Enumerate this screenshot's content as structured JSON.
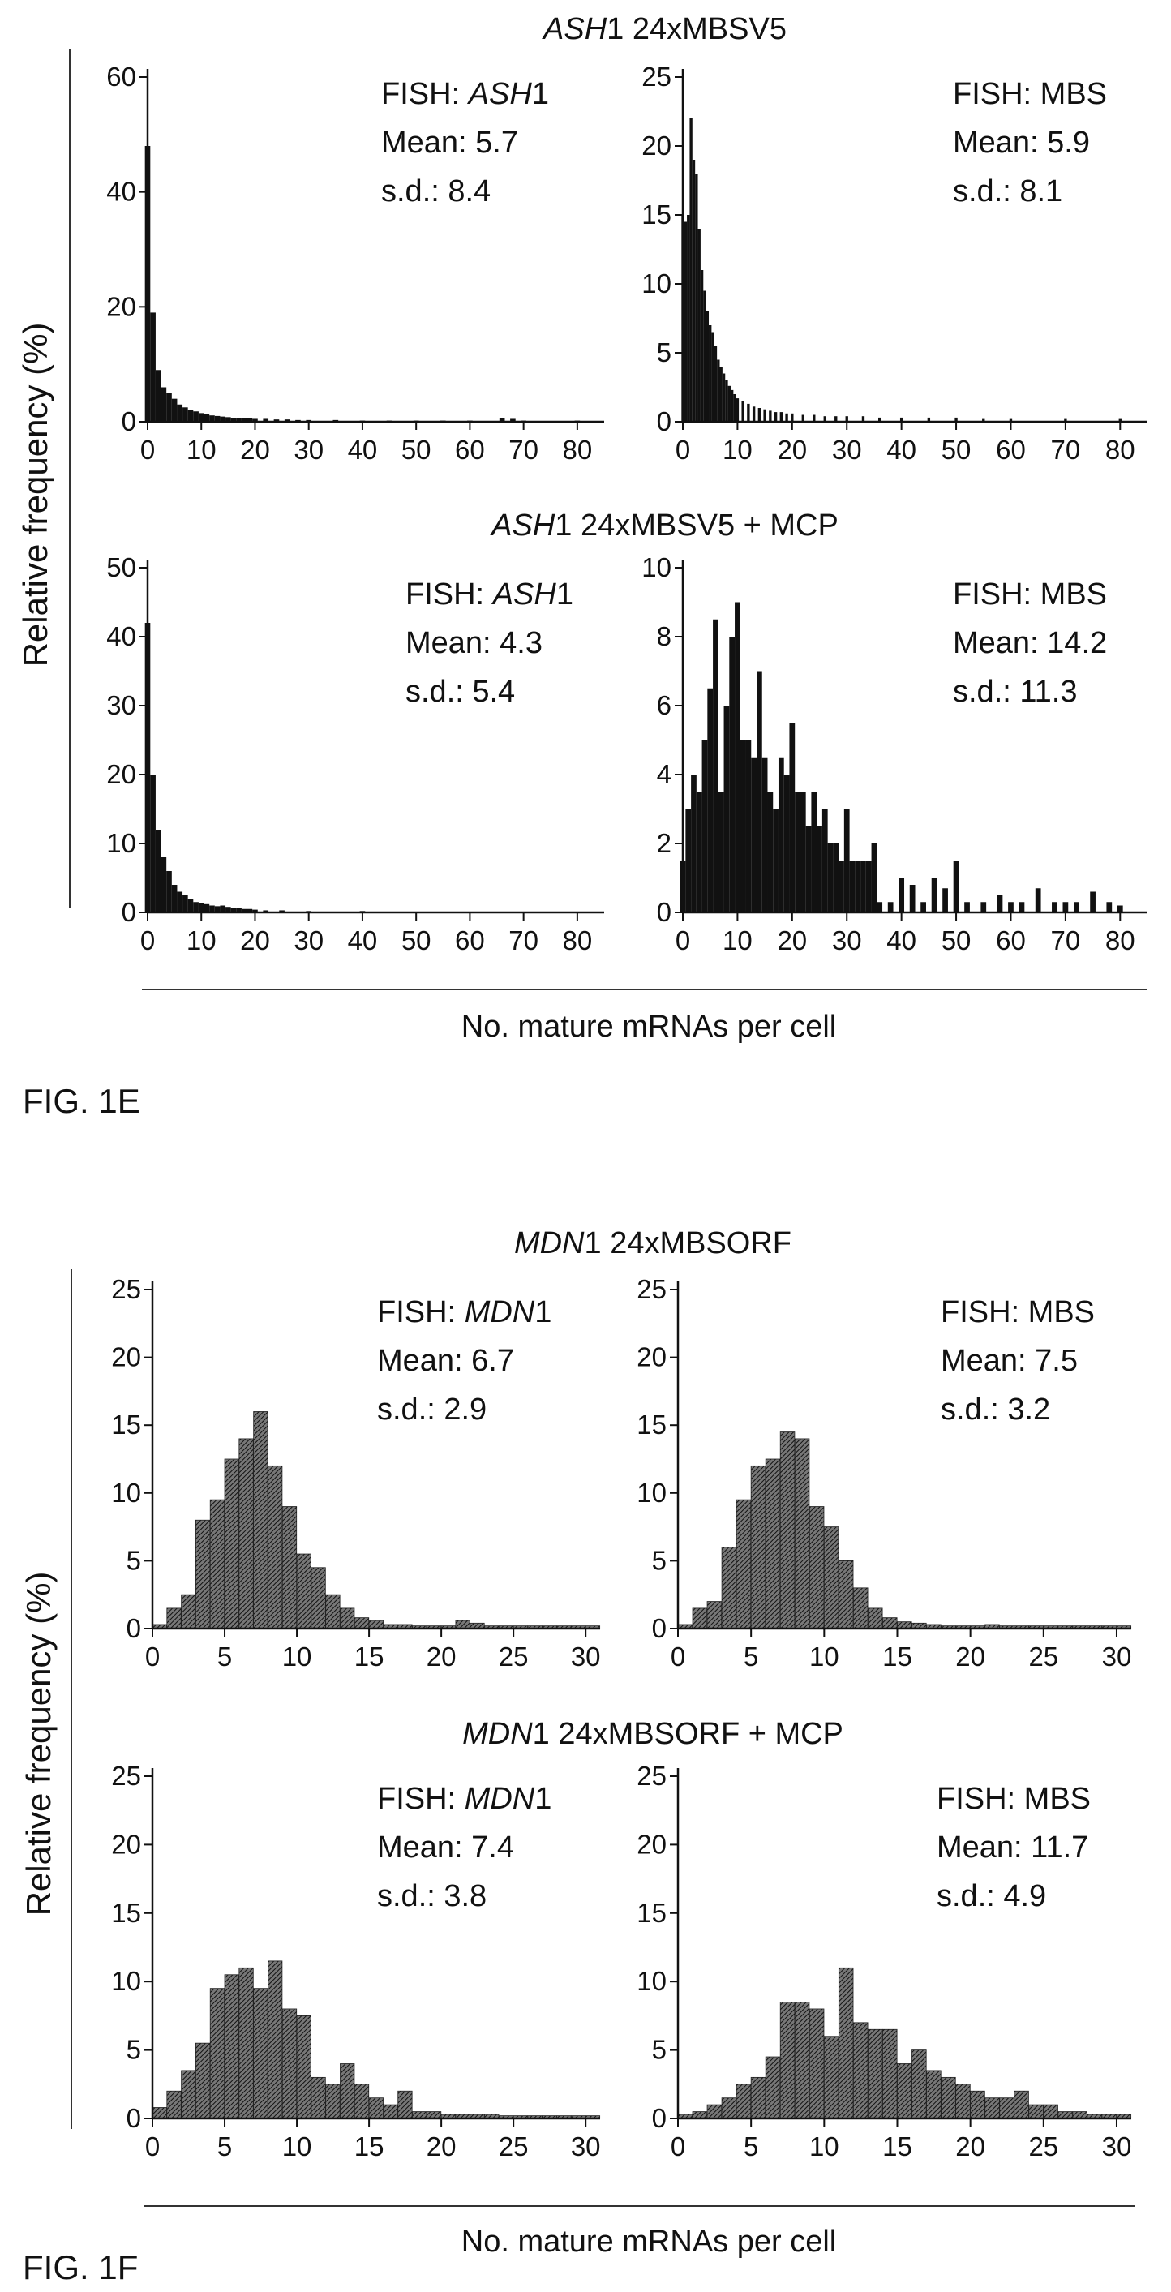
{
  "figures": [
    {
      "label": "FIG. 1E",
      "ylabel": "Relative frequency (%)",
      "xlabel": "No. mature mRNAs per cell",
      "group_titles": [
        {
          "gene": "ASH",
          "rest": "1 24xMBSV5"
        },
        {
          "gene": "ASH",
          "rest": "1 24xMBSV5 + MCP"
        }
      ]
    },
    {
      "label": "FIG. 1F",
      "ylabel": "Relative frequency (%)",
      "xlabel": "No. mature mRNAs per cell",
      "group_titles": [
        {
          "gene": "MDN",
          "rest": "1 24xMBSORF"
        },
        {
          "gene": "MDN",
          "rest": "1 24xMBSORF + MCP"
        }
      ]
    }
  ],
  "chart_data": [
    {
      "type": "bar",
      "figure": "FIG. 1E",
      "group": "ASH1 24xMBSV5",
      "fish": {
        "prefix": "FISH: ",
        "italic": "ASH",
        "suffix": "1"
      },
      "mean": "Mean: 5.7",
      "sd": "s.d.: 8.4",
      "xlim": [
        0,
        85
      ],
      "ylim": [
        0,
        60
      ],
      "xticks": [
        0,
        10,
        20,
        30,
        40,
        50,
        60,
        70,
        80
      ],
      "yticks": [
        0,
        20,
        40,
        60
      ],
      "x": [
        0,
        1,
        2,
        3,
        4,
        5,
        6,
        7,
        8,
        9,
        10,
        11,
        12,
        13,
        14,
        15,
        16,
        17,
        18,
        19,
        20,
        22,
        24,
        26,
        28,
        30,
        35,
        40,
        45,
        50,
        55,
        60,
        66,
        68,
        70,
        80
      ],
      "values": [
        48,
        19,
        9,
        6,
        5,
        4,
        3,
        2.5,
        2,
        1.8,
        1.5,
        1.3,
        1.1,
        1,
        0.9,
        0.8,
        0.7,
        0.7,
        0.6,
        0.6,
        0.5,
        0.5,
        0.4,
        0.4,
        0.3,
        0.3,
        0.3,
        0.2,
        0.2,
        0.2,
        0.2,
        0.2,
        0.6,
        0.5,
        0.2,
        0.2
      ]
    },
    {
      "type": "bar",
      "figure": "FIG. 1E",
      "group": "ASH1 24xMBSV5",
      "fish": {
        "prefix": "FISH: MBS",
        "italic": "",
        "suffix": ""
      },
      "mean": "Mean: 5.9",
      "sd": "s.d.: 8.1",
      "xlim": [
        0,
        85
      ],
      "ylim": [
        0,
        25
      ],
      "xticks": [
        0,
        10,
        20,
        30,
        40,
        50,
        60,
        70,
        80
      ],
      "yticks": [
        0,
        5,
        10,
        15,
        20,
        25
      ],
      "x": [
        0,
        0.5,
        1,
        1.5,
        2,
        2.5,
        3,
        3.5,
        4,
        4.5,
        5,
        5.5,
        6,
        6.5,
        7,
        7.5,
        8,
        8.5,
        9,
        9.5,
        10,
        11,
        12,
        13,
        14,
        15,
        16,
        17,
        18,
        19,
        20,
        22,
        24,
        26,
        28,
        30,
        33,
        36,
        40,
        45,
        50,
        55,
        60,
        70,
        80
      ],
      "values": [
        15,
        14.5,
        15,
        22,
        19,
        18,
        14,
        11,
        9.5,
        8,
        7,
        6.5,
        5.5,
        4.5,
        4,
        3.5,
        3,
        2.6,
        2.3,
        2,
        1.7,
        1.5,
        1.3,
        1.1,
        1,
        0.9,
        0.8,
        0.7,
        0.7,
        0.6,
        0.6,
        0.5,
        0.5,
        0.4,
        0.4,
        0.4,
        0.4,
        0.3,
        0.3,
        0.3,
        0.3,
        0.2,
        0.2,
        0.2,
        0.2
      ]
    },
    {
      "type": "bar",
      "figure": "FIG. 1E",
      "group": "ASH1 24xMBSV5 + MCP",
      "fish": {
        "prefix": "FISH: ",
        "italic": "ASH",
        "suffix": "1"
      },
      "mean": "Mean: 4.3",
      "sd": "s.d.: 5.4",
      "xlim": [
        0,
        85
      ],
      "ylim": [
        0,
        50
      ],
      "xticks": [
        0,
        10,
        20,
        30,
        40,
        50,
        60,
        70,
        80
      ],
      "yticks": [
        0,
        10,
        20,
        30,
        40,
        50
      ],
      "x": [
        0,
        1,
        2,
        3,
        4,
        5,
        6,
        7,
        8,
        9,
        10,
        11,
        12,
        13,
        14,
        15,
        16,
        17,
        18,
        19,
        20,
        22,
        25,
        30,
        40
      ],
      "values": [
        42,
        20,
        12,
        8,
        6,
        4,
        3,
        2.5,
        2,
        1.5,
        1.3,
        1.2,
        1,
        0.9,
        1,
        0.8,
        0.7,
        0.6,
        0.5,
        0.5,
        0.4,
        0.3,
        0.3,
        0.2,
        0.2
      ]
    },
    {
      "type": "bar",
      "figure": "FIG. 1E",
      "group": "ASH1 24xMBSV5 + MCP",
      "fish": {
        "prefix": "FISH: MBS",
        "italic": "",
        "suffix": ""
      },
      "mean": "Mean: 14.2",
      "sd": "s.d.: 11.3",
      "xlim": [
        0,
        85
      ],
      "ylim": [
        0,
        10
      ],
      "xticks": [
        0,
        10,
        20,
        30,
        40,
        50,
        60,
        70,
        80
      ],
      "yticks": [
        0,
        2,
        4,
        6,
        8,
        10
      ],
      "x": [
        0,
        1,
        2,
        3,
        4,
        5,
        6,
        7,
        8,
        9,
        10,
        11,
        12,
        13,
        14,
        15,
        16,
        17,
        18,
        19,
        20,
        21,
        22,
        23,
        24,
        25,
        26,
        27,
        28,
        29,
        30,
        31,
        32,
        33,
        34,
        35,
        36,
        38,
        40,
        42,
        44,
        46,
        48,
        50,
        52,
        55,
        58,
        60,
        62,
        65,
        68,
        70,
        72,
        75,
        78,
        80
      ],
      "values": [
        1.5,
        3,
        4,
        3.5,
        5,
        6.5,
        8.5,
        3.5,
        6,
        8,
        9,
        5,
        5,
        4.5,
        7,
        4.5,
        3.5,
        3,
        4.5,
        4,
        5.5,
        3.5,
        3.5,
        2.5,
        3.5,
        2.5,
        3,
        2,
        2,
        1.5,
        3,
        1.5,
        1.5,
        1.5,
        1.5,
        2,
        0.3,
        0.3,
        1,
        0.8,
        0.3,
        1,
        0.7,
        1.5,
        0.3,
        0.3,
        0.5,
        0.3,
        0.3,
        0.7,
        0.3,
        0.3,
        0.3,
        0.6,
        0.3,
        0.2
      ]
    },
    {
      "type": "bar",
      "figure": "FIG. 1F",
      "group": "MDN1 24xMBSORF",
      "fish": {
        "prefix": "FISH: ",
        "italic": "MDN",
        "suffix": "1"
      },
      "mean": "Mean: 6.7",
      "sd": "s.d.: 2.9",
      "xlim": [
        0,
        31
      ],
      "ylim": [
        0,
        25
      ],
      "xticks": [
        0,
        5,
        10,
        15,
        20,
        25,
        30
      ],
      "yticks": [
        0,
        5,
        10,
        15,
        20,
        25
      ],
      "x": [
        0,
        1,
        2,
        3,
        4,
        5,
        6,
        7,
        8,
        9,
        10,
        11,
        12,
        13,
        14,
        15,
        16,
        17,
        18,
        19,
        20,
        21,
        22,
        23,
        24,
        25,
        26,
        27,
        28,
        29,
        30
      ],
      "values": [
        0.3,
        1.5,
        2.5,
        8,
        9.5,
        12.5,
        14,
        16,
        12,
        9,
        5.5,
        4.5,
        2.5,
        1.5,
        0.8,
        0.6,
        0.3,
        0.3,
        0.2,
        0.2,
        0.2,
        0.6,
        0.4,
        0.2,
        0.2,
        0.2,
        0.2,
        0.2,
        0.2,
        0.2,
        0.2
      ]
    },
    {
      "type": "bar",
      "figure": "FIG. 1F",
      "group": "MDN1 24xMBSORF",
      "fish": {
        "prefix": "FISH: MBS",
        "italic": "",
        "suffix": ""
      },
      "mean": "Mean: 7.5",
      "sd": "s.d.: 3.2",
      "xlim": [
        0,
        31
      ],
      "ylim": [
        0,
        25
      ],
      "xticks": [
        0,
        5,
        10,
        15,
        20,
        25,
        30
      ],
      "yticks": [
        0,
        5,
        10,
        15,
        20,
        25
      ],
      "x": [
        0,
        1,
        2,
        3,
        4,
        5,
        6,
        7,
        8,
        9,
        10,
        11,
        12,
        13,
        14,
        15,
        16,
        17,
        18,
        19,
        20,
        21,
        22,
        23,
        24,
        25,
        26,
        27,
        28,
        29,
        30
      ],
      "values": [
        0.3,
        1.5,
        2,
        6,
        9.5,
        12,
        12.5,
        14.5,
        14,
        9,
        7.5,
        5,
        3,
        1.5,
        0.8,
        0.5,
        0.4,
        0.3,
        0.2,
        0.2,
        0.2,
        0.3,
        0.2,
        0.2,
        0.2,
        0.2,
        0.2,
        0.2,
        0.2,
        0.2,
        0.2
      ]
    },
    {
      "type": "bar",
      "figure": "FIG. 1F",
      "group": "MDN1 24xMBSORF + MCP",
      "fish": {
        "prefix": "FISH: ",
        "italic": "MDN",
        "suffix": "1"
      },
      "mean": "Mean: 7.4",
      "sd": "s.d.: 3.8",
      "xlim": [
        0,
        31
      ],
      "ylim": [
        0,
        25
      ],
      "xticks": [
        0,
        5,
        10,
        15,
        20,
        25,
        30
      ],
      "yticks": [
        0,
        5,
        10,
        15,
        20,
        25
      ],
      "x": [
        0,
        1,
        2,
        3,
        4,
        5,
        6,
        7,
        8,
        9,
        10,
        11,
        12,
        13,
        14,
        15,
        16,
        17,
        18,
        19,
        20,
        21,
        22,
        23,
        24,
        25,
        26,
        27,
        28,
        29,
        30
      ],
      "values": [
        0.8,
        2,
        3.5,
        5.5,
        9.5,
        10.5,
        11,
        9.5,
        11.5,
        8,
        7.5,
        3,
        2.5,
        4,
        2.5,
        1.5,
        1,
        2,
        0.5,
        0.5,
        0.3,
        0.3,
        0.3,
        0.3,
        0.2,
        0.2,
        0.2,
        0.2,
        0.2,
        0.2,
        0.2
      ]
    },
    {
      "type": "bar",
      "figure": "FIG. 1F",
      "group": "MDN1 24xMBSORF + MCP",
      "fish": {
        "prefix": "FISH: MBS",
        "italic": "",
        "suffix": ""
      },
      "mean": "Mean: 11.7",
      "sd": "s.d.: 4.9",
      "xlim": [
        0,
        31
      ],
      "ylim": [
        0,
        25
      ],
      "xticks": [
        0,
        5,
        10,
        15,
        20,
        25,
        30
      ],
      "yticks": [
        0,
        5,
        10,
        15,
        20,
        25
      ],
      "x": [
        0,
        1,
        2,
        3,
        4,
        5,
        6,
        7,
        8,
        9,
        10,
        11,
        12,
        13,
        14,
        15,
        16,
        17,
        18,
        19,
        20,
        21,
        22,
        23,
        24,
        25,
        26,
        27,
        28,
        29,
        30
      ],
      "values": [
        0.3,
        0.5,
        1,
        1.5,
        2.5,
        3,
        4.5,
        8.5,
        8.5,
        8,
        6,
        11,
        7,
        6.5,
        6.5,
        4,
        5,
        3.5,
        3,
        2.5,
        2,
        1.5,
        1.5,
        2,
        1,
        1,
        0.5,
        0.5,
        0.3,
        0.3,
        0.3
      ]
    }
  ]
}
